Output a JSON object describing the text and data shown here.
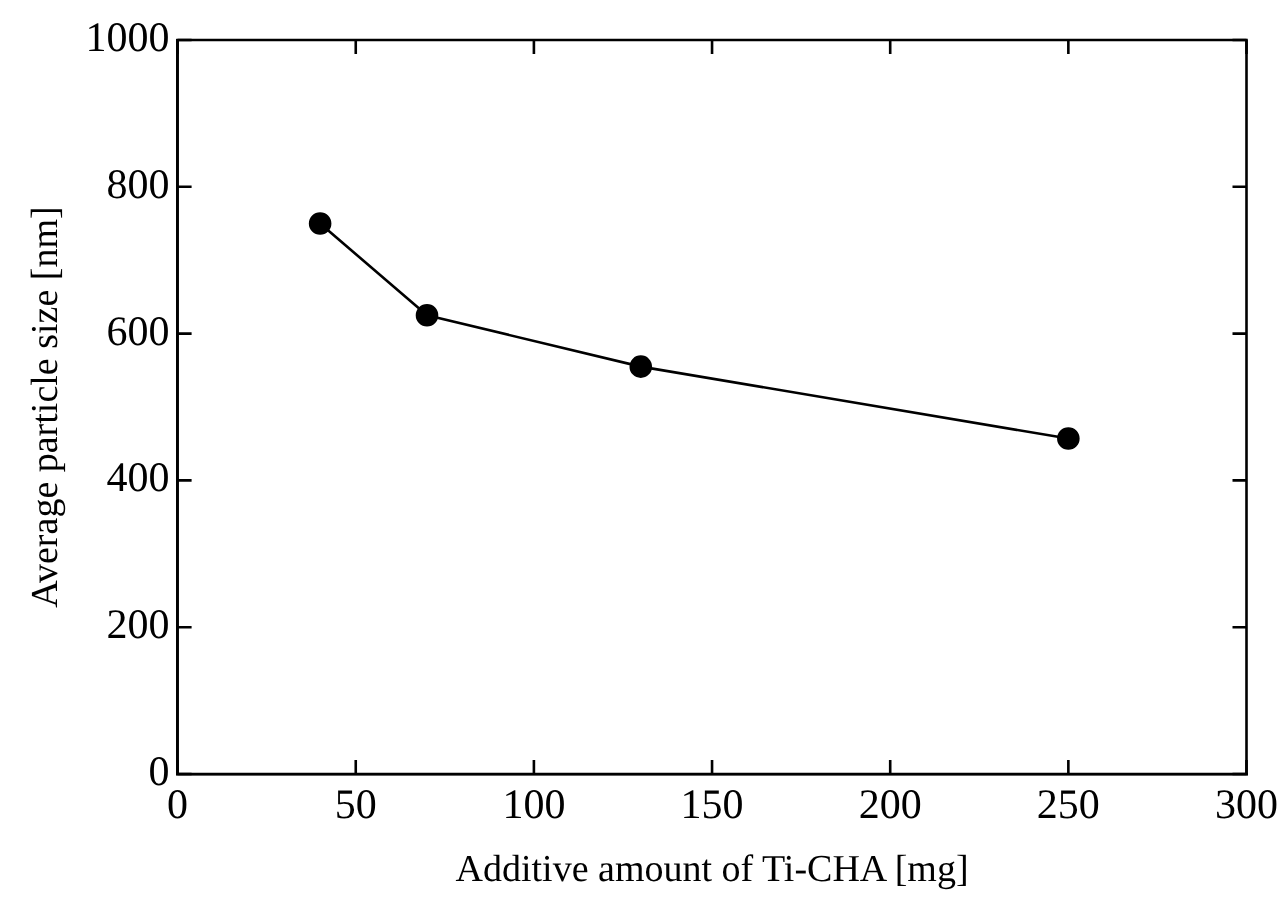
{
  "chart_data": {
    "type": "line",
    "xlabel": "Additive amount of Ti-CHA [mg]",
    "ylabel": "Average particle size [nm]",
    "x": [
      40,
      70,
      130,
      250
    ],
    "series": [
      {
        "color": "#000000",
        "values": [
          750,
          625,
          555,
          457
        ]
      }
    ],
    "xlim": [
      0,
      300
    ],
    "xticks": [
      0,
      50,
      100,
      150,
      200,
      250,
      300
    ],
    "ylim": [
      0,
      1000
    ],
    "yticks": [
      0,
      200,
      400,
      600,
      800,
      1000
    ],
    "grid": false,
    "legend": false,
    "marker": "circle",
    "line_style": "solid"
  }
}
